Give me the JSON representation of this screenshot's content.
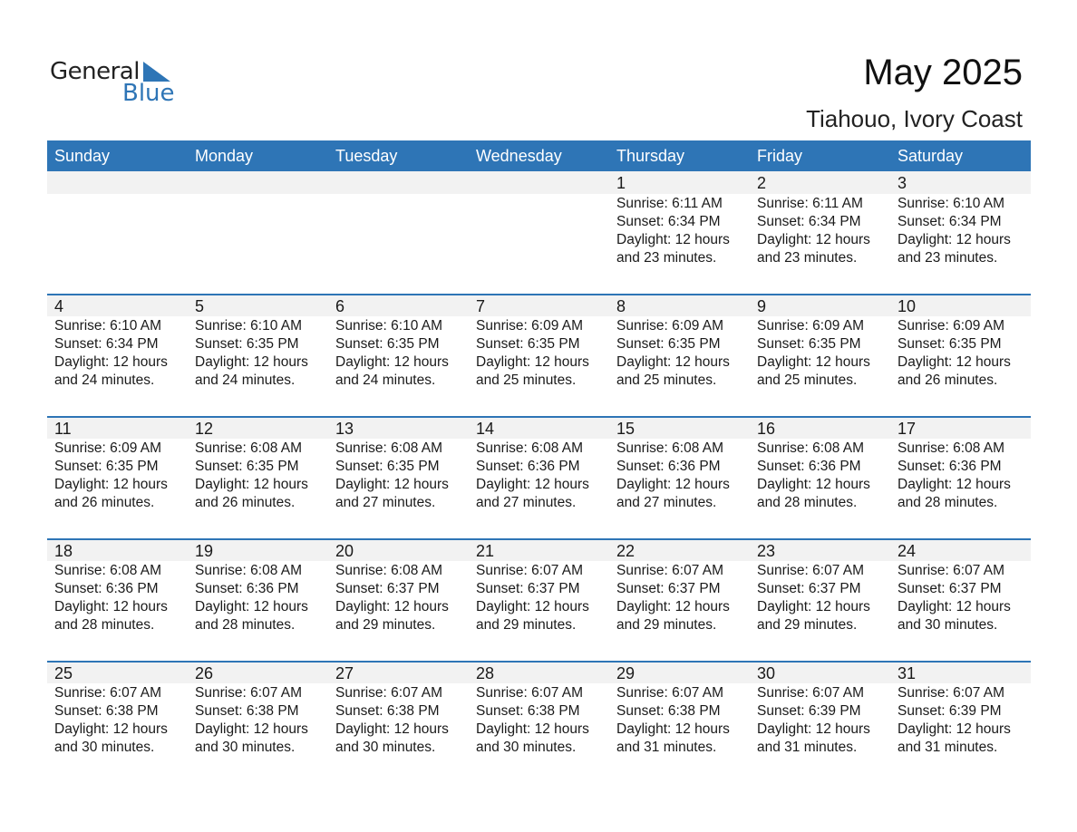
{
  "logo": {
    "word1": "General",
    "word2": "Blue"
  },
  "title": "May 2025",
  "location": "Tiahouo, Ivory Coast",
  "colors": {
    "accent": "#2e75b6",
    "band": "#f2f2f2"
  },
  "weekdays": [
    "Sunday",
    "Monday",
    "Tuesday",
    "Wednesday",
    "Thursday",
    "Friday",
    "Saturday"
  ],
  "weeks": [
    [
      null,
      null,
      null,
      null,
      {
        "day": "1",
        "sunrise": "Sunrise: 6:11 AM",
        "sunset": "Sunset: 6:34 PM",
        "daylight": "Daylight: 12 hours",
        "minutes": "and 23 minutes."
      },
      {
        "day": "2",
        "sunrise": "Sunrise: 6:11 AM",
        "sunset": "Sunset: 6:34 PM",
        "daylight": "Daylight: 12 hours",
        "minutes": "and 23 minutes."
      },
      {
        "day": "3",
        "sunrise": "Sunrise: 6:10 AM",
        "sunset": "Sunset: 6:34 PM",
        "daylight": "Daylight: 12 hours",
        "minutes": "and 23 minutes."
      }
    ],
    [
      {
        "day": "4",
        "sunrise": "Sunrise: 6:10 AM",
        "sunset": "Sunset: 6:34 PM",
        "daylight": "Daylight: 12 hours",
        "minutes": "and 24 minutes."
      },
      {
        "day": "5",
        "sunrise": "Sunrise: 6:10 AM",
        "sunset": "Sunset: 6:35 PM",
        "daylight": "Daylight: 12 hours",
        "minutes": "and 24 minutes."
      },
      {
        "day": "6",
        "sunrise": "Sunrise: 6:10 AM",
        "sunset": "Sunset: 6:35 PM",
        "daylight": "Daylight: 12 hours",
        "minutes": "and 24 minutes."
      },
      {
        "day": "7",
        "sunrise": "Sunrise: 6:09 AM",
        "sunset": "Sunset: 6:35 PM",
        "daylight": "Daylight: 12 hours",
        "minutes": "and 25 minutes."
      },
      {
        "day": "8",
        "sunrise": "Sunrise: 6:09 AM",
        "sunset": "Sunset: 6:35 PM",
        "daylight": "Daylight: 12 hours",
        "minutes": "and 25 minutes."
      },
      {
        "day": "9",
        "sunrise": "Sunrise: 6:09 AM",
        "sunset": "Sunset: 6:35 PM",
        "daylight": "Daylight: 12 hours",
        "minutes": "and 25 minutes."
      },
      {
        "day": "10",
        "sunrise": "Sunrise: 6:09 AM",
        "sunset": "Sunset: 6:35 PM",
        "daylight": "Daylight: 12 hours",
        "minutes": "and 26 minutes."
      }
    ],
    [
      {
        "day": "11",
        "sunrise": "Sunrise: 6:09 AM",
        "sunset": "Sunset: 6:35 PM",
        "daylight": "Daylight: 12 hours",
        "minutes": "and 26 minutes."
      },
      {
        "day": "12",
        "sunrise": "Sunrise: 6:08 AM",
        "sunset": "Sunset: 6:35 PM",
        "daylight": "Daylight: 12 hours",
        "minutes": "and 26 minutes."
      },
      {
        "day": "13",
        "sunrise": "Sunrise: 6:08 AM",
        "sunset": "Sunset: 6:35 PM",
        "daylight": "Daylight: 12 hours",
        "minutes": "and 27 minutes."
      },
      {
        "day": "14",
        "sunrise": "Sunrise: 6:08 AM",
        "sunset": "Sunset: 6:36 PM",
        "daylight": "Daylight: 12 hours",
        "minutes": "and 27 minutes."
      },
      {
        "day": "15",
        "sunrise": "Sunrise: 6:08 AM",
        "sunset": "Sunset: 6:36 PM",
        "daylight": "Daylight: 12 hours",
        "minutes": "and 27 minutes."
      },
      {
        "day": "16",
        "sunrise": "Sunrise: 6:08 AM",
        "sunset": "Sunset: 6:36 PM",
        "daylight": "Daylight: 12 hours",
        "minutes": "and 28 minutes."
      },
      {
        "day": "17",
        "sunrise": "Sunrise: 6:08 AM",
        "sunset": "Sunset: 6:36 PM",
        "daylight": "Daylight: 12 hours",
        "minutes": "and 28 minutes."
      }
    ],
    [
      {
        "day": "18",
        "sunrise": "Sunrise: 6:08 AM",
        "sunset": "Sunset: 6:36 PM",
        "daylight": "Daylight: 12 hours",
        "minutes": "and 28 minutes."
      },
      {
        "day": "19",
        "sunrise": "Sunrise: 6:08 AM",
        "sunset": "Sunset: 6:36 PM",
        "daylight": "Daylight: 12 hours",
        "minutes": "and 28 minutes."
      },
      {
        "day": "20",
        "sunrise": "Sunrise: 6:08 AM",
        "sunset": "Sunset: 6:37 PM",
        "daylight": "Daylight: 12 hours",
        "minutes": "and 29 minutes."
      },
      {
        "day": "21",
        "sunrise": "Sunrise: 6:07 AM",
        "sunset": "Sunset: 6:37 PM",
        "daylight": "Daylight: 12 hours",
        "minutes": "and 29 minutes."
      },
      {
        "day": "22",
        "sunrise": "Sunrise: 6:07 AM",
        "sunset": "Sunset: 6:37 PM",
        "daylight": "Daylight: 12 hours",
        "minutes": "and 29 minutes."
      },
      {
        "day": "23",
        "sunrise": "Sunrise: 6:07 AM",
        "sunset": "Sunset: 6:37 PM",
        "daylight": "Daylight: 12 hours",
        "minutes": "and 29 minutes."
      },
      {
        "day": "24",
        "sunrise": "Sunrise: 6:07 AM",
        "sunset": "Sunset: 6:37 PM",
        "daylight": "Daylight: 12 hours",
        "minutes": "and 30 minutes."
      }
    ],
    [
      {
        "day": "25",
        "sunrise": "Sunrise: 6:07 AM",
        "sunset": "Sunset: 6:38 PM",
        "daylight": "Daylight: 12 hours",
        "minutes": "and 30 minutes."
      },
      {
        "day": "26",
        "sunrise": "Sunrise: 6:07 AM",
        "sunset": "Sunset: 6:38 PM",
        "daylight": "Daylight: 12 hours",
        "minutes": "and 30 minutes."
      },
      {
        "day": "27",
        "sunrise": "Sunrise: 6:07 AM",
        "sunset": "Sunset: 6:38 PM",
        "daylight": "Daylight: 12 hours",
        "minutes": "and 30 minutes."
      },
      {
        "day": "28",
        "sunrise": "Sunrise: 6:07 AM",
        "sunset": "Sunset: 6:38 PM",
        "daylight": "Daylight: 12 hours",
        "minutes": "and 30 minutes."
      },
      {
        "day": "29",
        "sunrise": "Sunrise: 6:07 AM",
        "sunset": "Sunset: 6:38 PM",
        "daylight": "Daylight: 12 hours",
        "minutes": "and 31 minutes."
      },
      {
        "day": "30",
        "sunrise": "Sunrise: 6:07 AM",
        "sunset": "Sunset: 6:39 PM",
        "daylight": "Daylight: 12 hours",
        "minutes": "and 31 minutes."
      },
      {
        "day": "31",
        "sunrise": "Sunrise: 6:07 AM",
        "sunset": "Sunset: 6:39 PM",
        "daylight": "Daylight: 12 hours",
        "minutes": "and 31 minutes."
      }
    ]
  ]
}
